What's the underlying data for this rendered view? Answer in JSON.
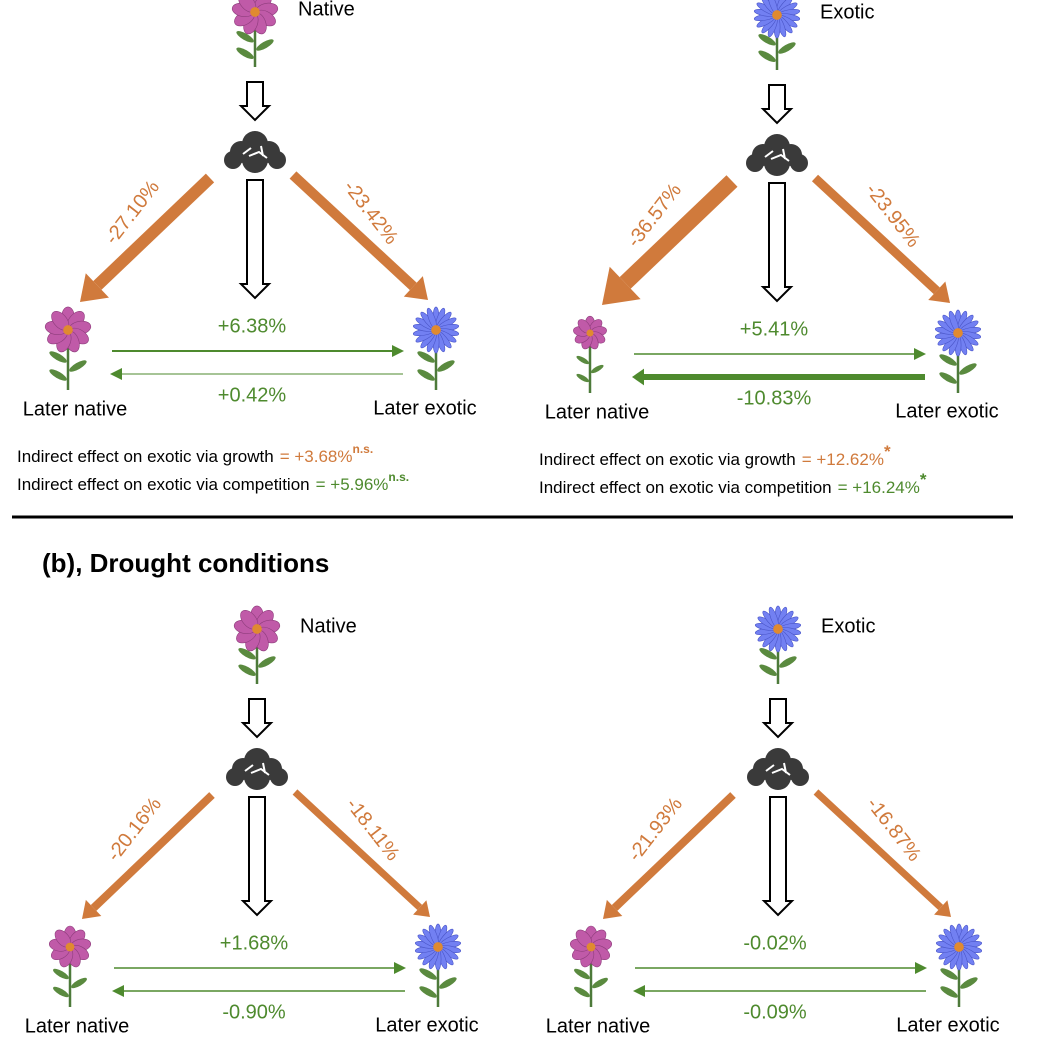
{
  "section_b_title": "(b), Drought conditions",
  "panels": [
    {
      "source": "Native",
      "growth_to_native": "-27.10%",
      "growth_to_exotic": "-23.42%",
      "competition_native_on_exotic": "+6.38%",
      "competition_exotic_on_native": "+0.42%",
      "later_native": "Later native",
      "later_exotic": "Later exotic",
      "indirect": [
        {
          "label": "Indirect effect on exotic via growth",
          "value": "= +3.68%",
          "significance": "n.s."
        },
        {
          "label": "Indirect effect on exotic via competition",
          "value": "= +5.96%",
          "significance": "n.s."
        }
      ]
    },
    {
      "source": "Exotic",
      "growth_to_native": "-36.57%",
      "growth_to_exotic": "-23.95%",
      "competition_native_on_exotic": "+5.41%",
      "competition_exotic_on_native": "-10.83%",
      "later_native": "Later native",
      "later_exotic": "Later exotic",
      "indirect": [
        {
          "label": "Indirect effect on exotic via growth",
          "value": "= +12.62%",
          "significance": "*"
        },
        {
          "label": "Indirect effect on exotic via competition",
          "value": "= +16.24%",
          "significance": "*"
        }
      ]
    },
    {
      "source": "Native",
      "growth_to_native": "-20.16%",
      "growth_to_exotic": "-18.11%",
      "competition_native_on_exotic": "+1.68%",
      "competition_exotic_on_native": "-0.90%",
      "later_native": "Later native",
      "later_exotic": "Later exotic"
    },
    {
      "source": "Exotic",
      "growth_to_native": "-21.93%",
      "growth_to_exotic": "-16.87%",
      "competition_native_on_exotic": "-0.02%",
      "competition_exotic_on_native": "-0.09%",
      "later_native": "Later native",
      "later_exotic": "Later exotic"
    }
  ]
}
